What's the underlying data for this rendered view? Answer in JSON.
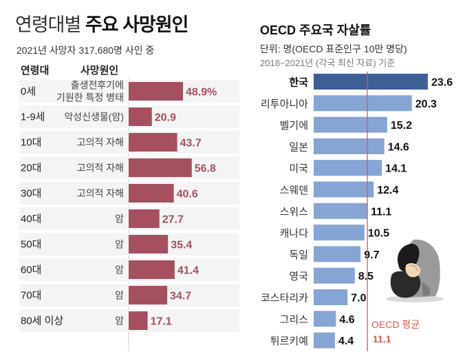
{
  "left": {
    "title_light": "연령대별",
    "title_bold": "주요 사망원인",
    "subtitle": "2021년 사망자 317,680명 사인 중",
    "col_age": "연령대",
    "col_cause": "사망원인"
  },
  "right": {
    "title": "OECD 주요국 자살률",
    "unit": "단위: 명(OECD 표준인구 10만 명당)",
    "note": "2018~2021년 (각국 최신 자료) 기준",
    "avg_label": "OECD 평균",
    "avg_value_label": "11.1"
  },
  "colors": {
    "left_bar": "#a4505f",
    "left_value": "#a4505f",
    "left_row_bg": "#f4f4f4",
    "right_bar": "#86a4d4",
    "right_bar_highlight": "#3d5f96",
    "avg_line": "#e0564a"
  },
  "chart_data": [
    {
      "type": "bar",
      "orientation": "horizontal",
      "categories": [
        "0세",
        "1-9세",
        "10대",
        "20대",
        "30대",
        "40대",
        "50대",
        "60대",
        "70대",
        "80세 이상"
      ],
      "causes": [
        "출생전후기에\n기원한 특정 병태",
        "악성신생물(암)",
        "고의적 자해",
        "고의적 자해",
        "고의적 자해",
        "암",
        "암",
        "암",
        "암",
        "암"
      ],
      "values": [
        48.9,
        20.9,
        43.7,
        56.8,
        40.6,
        27.7,
        35.4,
        41.4,
        34.7,
        17.1
      ],
      "value_labels": [
        "48.9%",
        "20.9",
        "43.7",
        "56.8",
        "40.6",
        "27.7",
        "35.4",
        "41.4",
        "34.7",
        "17.1"
      ],
      "unit": "%"
    },
    {
      "type": "bar",
      "orientation": "horizontal",
      "categories": [
        "한국",
        "리투아니아",
        "벨기에",
        "일본",
        "미국",
        "스웨덴",
        "스위스",
        "캐나다",
        "독일",
        "영국",
        "코스타리카",
        "그리스",
        "튀르키예"
      ],
      "values": [
        23.6,
        20.3,
        15.2,
        14.6,
        14.1,
        12.4,
        11.1,
        10.5,
        9.7,
        8.5,
        7.0,
        4.6,
        4.4
      ],
      "value_labels": [
        "23.6",
        "20.3",
        "15.2",
        "14.6",
        "14.1",
        "12.4",
        "11.1",
        "10.5",
        "9.7",
        "8.5",
        "7.0",
        "4.6",
        "4.4"
      ],
      "highlight": "한국",
      "reference_line": 11.1
    }
  ]
}
